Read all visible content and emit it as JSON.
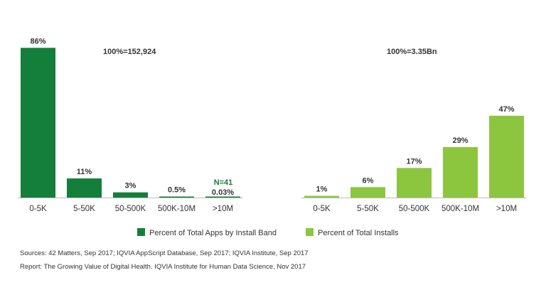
{
  "colors": {
    "apps": "#137f3a",
    "installs": "#8cc63f",
    "label_dark": "#333333",
    "note_green": "#137f3a",
    "axis": "#bdbdbd"
  },
  "chart_data": [
    {
      "type": "bar",
      "categories": [
        "0-5K",
        "5-50K",
        "50-500K",
        "500K-10M",
        ">10M"
      ],
      "values": [
        86,
        11,
        3,
        0.5,
        0.03
      ],
      "value_labels": [
        "86%",
        "11%",
        "3%",
        "0.5%",
        "0.03%"
      ],
      "series_name": "Percent of Total Apps by Install Band",
      "total_label": "100%=152,924",
      "annotation": "N=41",
      "ylim": [
        0,
        100
      ]
    },
    {
      "type": "bar",
      "categories": [
        "0-5K",
        "5-50K",
        "50-500K",
        "500K-10M",
        ">10M"
      ],
      "values": [
        1,
        6,
        17,
        29,
        47
      ],
      "value_labels": [
        "1%",
        "6%",
        "17%",
        "29%",
        "47%"
      ],
      "series_name": "Percent of Total Installs",
      "total_label": "100%=3.35Bn",
      "ylim": [
        0,
        100
      ]
    }
  ],
  "footer": {
    "sources": "Sources: 42 Matters, Sep 2017; IQVIA AppScript Database, Sep 2017; IQVIA Institute, Sep 2017",
    "report": "Report: The Growing Value of Digital Health. IQVIA Institute for Human Data Science, Nov 2017"
  }
}
